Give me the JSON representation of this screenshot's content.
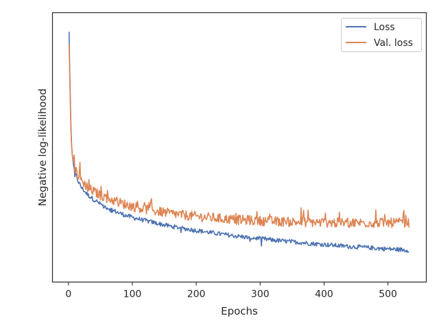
{
  "chart_data": {
    "type": "line",
    "xlabel": "Epochs",
    "ylabel": "Negative log-likelihood",
    "xlim": [
      -25,
      560
    ],
    "ylim": [
      0,
      1
    ],
    "x_ticks": [
      0,
      100,
      200,
      300,
      400,
      500
    ],
    "y_ticks_shown": false,
    "grid": false,
    "legend": {
      "placement": "upper-right",
      "entries": [
        "Loss",
        "Val. loss"
      ]
    },
    "colors": {
      "Loss": "#4c72b0",
      "Val. loss": "#dd8452"
    },
    "x_range": [
      1,
      533
    ],
    "series": [
      {
        "name": "Loss",
        "color": "#4c72b0",
        "x": [
          1,
          2,
          3,
          4,
          5,
          6,
          8,
          10,
          13,
          16,
          20,
          25,
          30,
          40,
          50,
          60,
          70,
          80,
          90,
          100,
          120,
          140,
          160,
          180,
          200,
          220,
          240,
          260,
          280,
          300,
          320,
          340,
          360,
          380,
          400,
          420,
          440,
          460,
          480,
          500,
          520,
          533
        ],
        "values": [
          0.96,
          0.8,
          0.68,
          0.57,
          0.5,
          0.46,
          0.42,
          0.39,
          0.37,
          0.35,
          0.33,
          0.315,
          0.3,
          0.28,
          0.262,
          0.248,
          0.236,
          0.225,
          0.216,
          0.208,
          0.195,
          0.183,
          0.172,
          0.163,
          0.155,
          0.147,
          0.14,
          0.133,
          0.127,
          0.122,
          0.116,
          0.111,
          0.107,
          0.102,
          0.098,
          0.094,
          0.09,
          0.087,
          0.083,
          0.08,
          0.077,
          0.075
        ]
      },
      {
        "name": "Val. loss",
        "color": "#dd8452",
        "x": [
          1,
          2,
          3,
          4,
          5,
          6,
          8,
          10,
          13,
          16,
          20,
          25,
          30,
          40,
          50,
          60,
          70,
          80,
          90,
          100,
          120,
          140,
          160,
          180,
          200,
          220,
          240,
          260,
          280,
          300,
          320,
          340,
          360,
          380,
          400,
          420,
          440,
          460,
          480,
          500,
          520,
          533
        ],
        "values": [
          0.91,
          0.78,
          0.66,
          0.56,
          0.5,
          0.46,
          0.43,
          0.41,
          0.39,
          0.375,
          0.36,
          0.345,
          0.33,
          0.312,
          0.298,
          0.287,
          0.277,
          0.268,
          0.26,
          0.253,
          0.242,
          0.232,
          0.224,
          0.217,
          0.212,
          0.207,
          0.203,
          0.199,
          0.196,
          0.194,
          0.192,
          0.19,
          0.189,
          0.188,
          0.187,
          0.186,
          0.186,
          0.186,
          0.186,
          0.186,
          0.186,
          0.186
        ]
      }
    ]
  }
}
